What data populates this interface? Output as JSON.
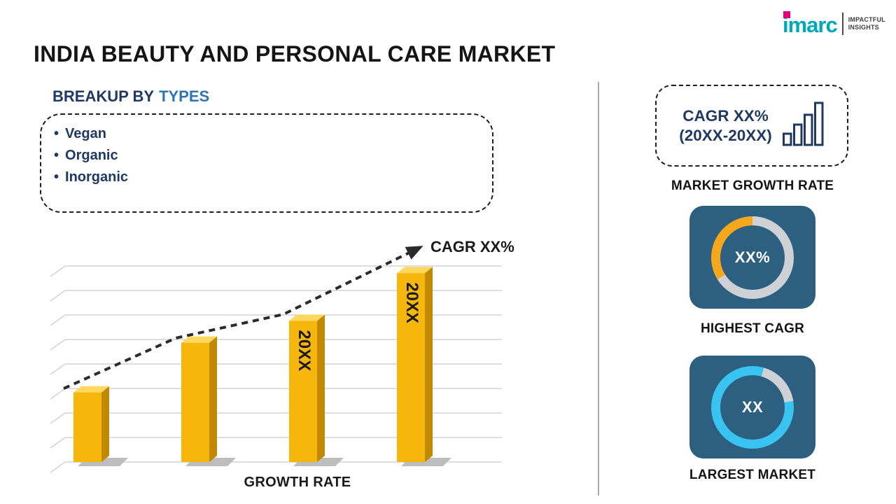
{
  "logo": {
    "brand": "imarc",
    "tagline_line1": "IMPACTFUL",
    "tagline_line2": "INSIGHTS"
  },
  "title": "INDIA BEAUTY AND PERSONAL CARE MARKET",
  "breakup": {
    "heading_prefix": "BREAKUP BY",
    "heading_highlight": "TYPES",
    "items": [
      "Vegan",
      "Organic",
      "Inorganic"
    ]
  },
  "right_panel": {
    "cagr_box_line1": "CAGR XX%",
    "cagr_box_line2": "(20XX-20XX)",
    "market_growth_rate_label": "MARKET GROWTH RATE"
  },
  "chart_data": [
    {
      "type": "bar",
      "title": "",
      "xlabel": "GROWTH RATE",
      "ylabel": "",
      "categories": [
        "",
        "",
        "20XX",
        "20XX"
      ],
      "values": [
        35,
        60,
        71,
        95
      ],
      "bar_labels": [
        "",
        "",
        "20XX",
        "20XX"
      ],
      "ylim": [
        0,
        100
      ],
      "grid": true,
      "legend": false,
      "annotation": "CAGR XX%",
      "trend": "dashed ascending arrow through bar tops"
    },
    {
      "type": "pie",
      "subtype": "donut",
      "title": "HIGHEST CAGR",
      "center_value": "XX%",
      "slices": [
        {
          "name": "highlighted-share",
          "fraction": 0.34,
          "color": "#f5a81c"
        },
        {
          "name": "remainder",
          "fraction": 0.66,
          "color": "#ced2d6"
        }
      ]
    },
    {
      "type": "pie",
      "subtype": "donut",
      "title": "LARGEST MARKET",
      "center_value": "XX",
      "slices": [
        {
          "name": "highlighted-share",
          "fraction": 0.82,
          "color": "#39c3f0"
        },
        {
          "name": "remainder",
          "fraction": 0.18,
          "color": "#ced2d6"
        }
      ]
    }
  ],
  "colors": {
    "logo_teal": "#00a9b8",
    "logo_magenta": "#e6007e",
    "heading_navy": "#1f3864",
    "heading_blue": "#2e75b6",
    "bar_front": "#f7b60c",
    "bar_side": "#bf8a00",
    "bar_top": "#ffd75e",
    "trend_line": "#2b2b2b",
    "panel_blue": "#2d5f80",
    "ring_gray": "#ced2d6",
    "ring_orange": "#f5a81c",
    "ring_cyan": "#39c3f0",
    "divider_gray": "#ababab",
    "label_dark": "#141414"
  }
}
